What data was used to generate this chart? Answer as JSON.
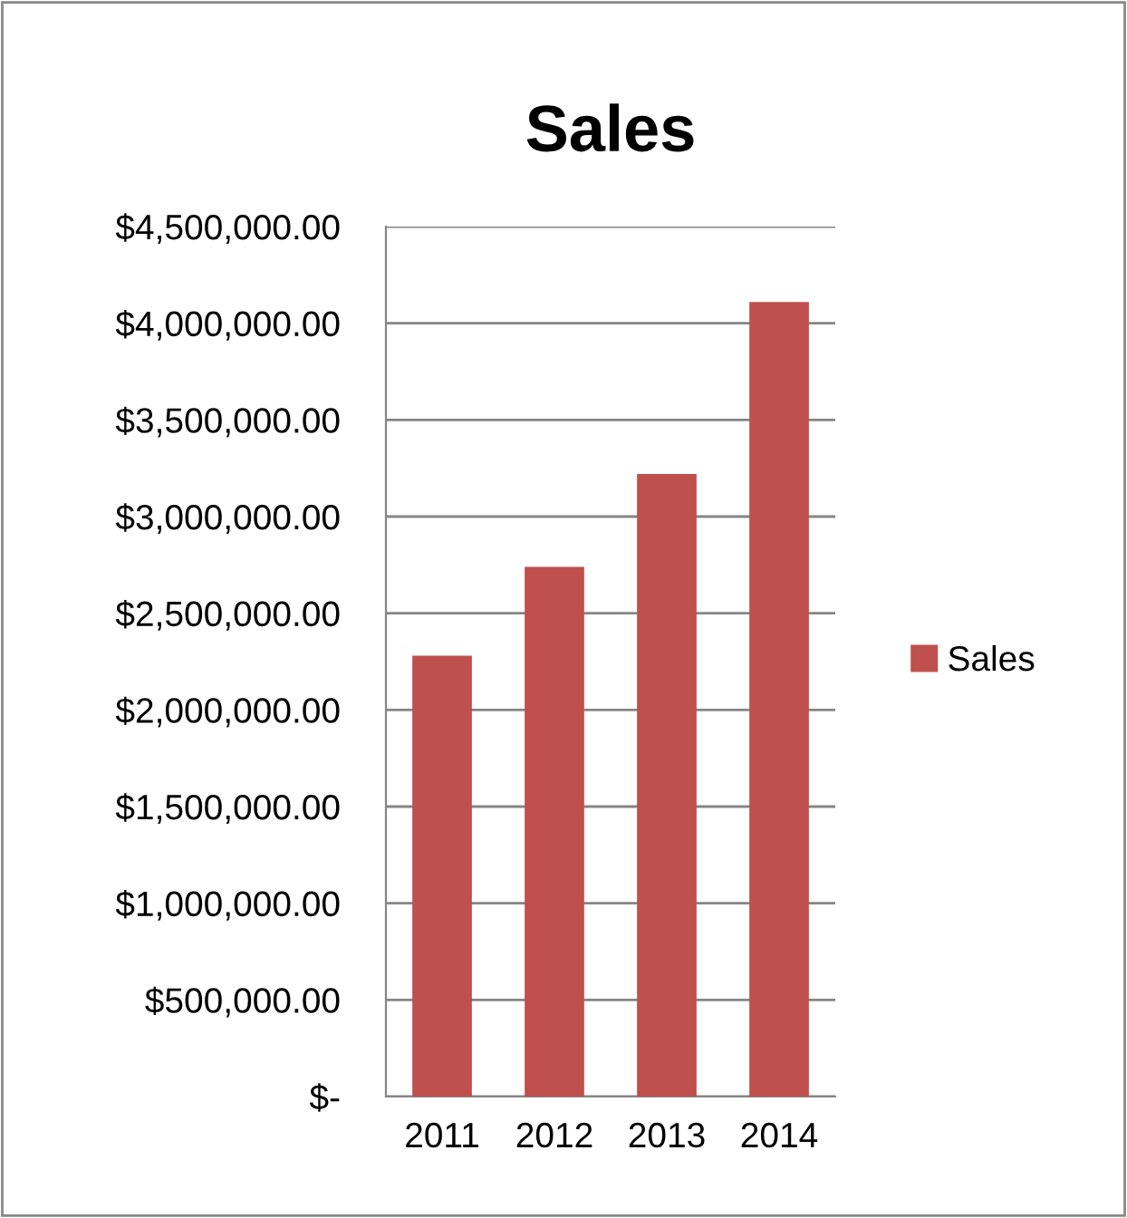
{
  "chart_data": {
    "type": "bar",
    "title": "Sales",
    "categories": [
      "2011",
      "2012",
      "2013",
      "2014"
    ],
    "series": [
      {
        "name": "Sales",
        "color": "#c0504d",
        "values": [
          2280000,
          2740000,
          3220000,
          4110000
        ]
      }
    ],
    "ylim": [
      0,
      4500000
    ],
    "yticks": [
      {
        "value": 0,
        "label": "$-"
      },
      {
        "value": 500000,
        "label": "$500,000.00"
      },
      {
        "value": 1000000,
        "label": "$1,000,000.00"
      },
      {
        "value": 1500000,
        "label": "$1,500,000.00"
      },
      {
        "value": 2000000,
        "label": "$2,000,000.00"
      },
      {
        "value": 2500000,
        "label": "$2,500,000.00"
      },
      {
        "value": 3000000,
        "label": "$3,000,000.00"
      },
      {
        "value": 3500000,
        "label": "$3,500,000.00"
      },
      {
        "value": 4000000,
        "label": "$4,000,000.00"
      },
      {
        "value": 4500000,
        "label": "$4,500,000.00"
      }
    ],
    "grid": "y",
    "legend": "right"
  }
}
